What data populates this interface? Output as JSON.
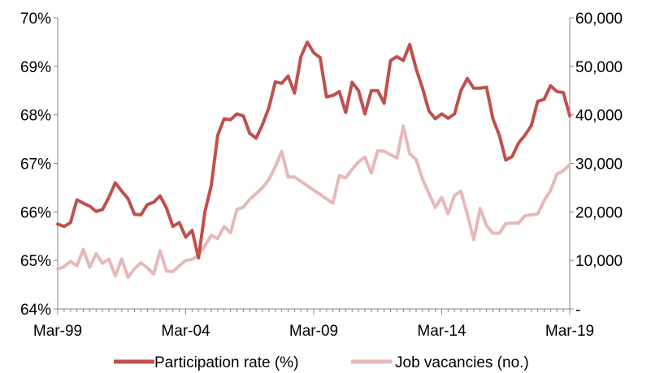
{
  "chart_data": {
    "type": "line",
    "title": "",
    "xlabel": "",
    "ylabel_left": "",
    "ylabel_right": "",
    "x_ticks": [
      "Mar-99",
      "Mar-04",
      "Mar-09",
      "Mar-14",
      "Mar-19"
    ],
    "x_range": [
      "1999-03",
      "2019-03"
    ],
    "y_left": {
      "lim": [
        64,
        70
      ],
      "ticks": [
        "64%",
        "65%",
        "66%",
        "67%",
        "68%",
        "69%",
        "70%"
      ]
    },
    "y_right": {
      "lim": [
        0,
        60000
      ],
      "ticks": [
        "-",
        "10,000",
        "20,000",
        "30,000",
        "40,000",
        "50,000",
        "60,000"
      ]
    },
    "grid": false,
    "legend_position": "bottom",
    "series": [
      {
        "name": "Participation rate (%)",
        "axis": "left",
        "color": "#c0504d",
        "points": [
          [
            "1999-03",
            65.75
          ],
          [
            "1999-06",
            65.7
          ],
          [
            "1999-09",
            65.78
          ],
          [
            "1999-12",
            66.25
          ],
          [
            "2000-03",
            66.18
          ],
          [
            "2000-06",
            66.12
          ],
          [
            "2000-09",
            66.01
          ],
          [
            "2000-12",
            66.05
          ],
          [
            "2001-03",
            66.3
          ],
          [
            "2001-06",
            66.6
          ],
          [
            "2001-09",
            66.43
          ],
          [
            "2001-12",
            66.27
          ],
          [
            "2002-03",
            65.95
          ],
          [
            "2002-06",
            65.94
          ],
          [
            "2002-09",
            66.15
          ],
          [
            "2002-12",
            66.2
          ],
          [
            "2003-03",
            66.33
          ],
          [
            "2003-06",
            66.08
          ],
          [
            "2003-09",
            65.7
          ],
          [
            "2003-12",
            65.78
          ],
          [
            "2004-03",
            65.48
          ],
          [
            "2004-06",
            65.62
          ],
          [
            "2004-09",
            65.05
          ],
          [
            "2004-12",
            66.0
          ],
          [
            "2005-03",
            66.55
          ],
          [
            "2005-06",
            67.58
          ],
          [
            "2005-09",
            67.92
          ],
          [
            "2005-12",
            67.9
          ],
          [
            "2006-03",
            68.02
          ],
          [
            "2006-06",
            67.98
          ],
          [
            "2006-09",
            67.62
          ],
          [
            "2006-12",
            67.52
          ],
          [
            "2007-03",
            67.8
          ],
          [
            "2007-06",
            68.15
          ],
          [
            "2007-09",
            68.68
          ],
          [
            "2007-12",
            68.65
          ],
          [
            "2008-03",
            68.8
          ],
          [
            "2008-06",
            68.45
          ],
          [
            "2008-09",
            69.2
          ],
          [
            "2008-12",
            69.5
          ],
          [
            "2009-03",
            69.28
          ],
          [
            "2009-06",
            69.18
          ],
          [
            "2009-09",
            68.37
          ],
          [
            "2009-12",
            68.4
          ],
          [
            "2010-03",
            68.48
          ],
          [
            "2010-06",
            68.05
          ],
          [
            "2010-09",
            68.67
          ],
          [
            "2010-12",
            68.5
          ],
          [
            "2011-03",
            68.02
          ],
          [
            "2011-06",
            68.5
          ],
          [
            "2011-09",
            68.5
          ],
          [
            "2011-12",
            68.24
          ],
          [
            "2012-03",
            69.12
          ],
          [
            "2012-06",
            69.2
          ],
          [
            "2012-09",
            69.12
          ],
          [
            "2012-12",
            69.45
          ],
          [
            "2013-03",
            68.95
          ],
          [
            "2013-06",
            68.55
          ],
          [
            "2013-09",
            68.08
          ],
          [
            "2013-12",
            67.92
          ],
          [
            "2014-03",
            68.02
          ],
          [
            "2014-06",
            67.93
          ],
          [
            "2014-09",
            68.02
          ],
          [
            "2014-12",
            68.5
          ],
          [
            "2015-03",
            68.75
          ],
          [
            "2015-06",
            68.55
          ],
          [
            "2015-09",
            68.55
          ],
          [
            "2015-12",
            68.57
          ],
          [
            "2016-03",
            67.92
          ],
          [
            "2016-06",
            67.58
          ],
          [
            "2016-09",
            67.07
          ],
          [
            "2016-12",
            67.14
          ],
          [
            "2017-03",
            67.42
          ],
          [
            "2017-06",
            67.58
          ],
          [
            "2017-09",
            67.78
          ],
          [
            "2017-12",
            68.28
          ],
          [
            "2018-03",
            68.32
          ],
          [
            "2018-06",
            68.6
          ],
          [
            "2018-09",
            68.48
          ],
          [
            "2018-12",
            68.46
          ],
          [
            "2019-03",
            67.98
          ]
        ]
      },
      {
        "name": "Job vacancies (no.)",
        "axis": "right",
        "color": "#e6b9b8",
        "points": [
          [
            "1999-03",
            8200
          ],
          [
            "1999-06",
            8700
          ],
          [
            "1999-09",
            9800
          ],
          [
            "1999-12",
            8900
          ],
          [
            "2000-03",
            12300
          ],
          [
            "2000-06",
            8600
          ],
          [
            "2000-09",
            11400
          ],
          [
            "2000-12",
            9400
          ],
          [
            "2001-03",
            10300
          ],
          [
            "2001-06",
            6800
          ],
          [
            "2001-09",
            10300
          ],
          [
            "2001-12",
            6500
          ],
          [
            "2002-03",
            8300
          ],
          [
            "2002-06",
            9500
          ],
          [
            "2002-09",
            8500
          ],
          [
            "2002-12",
            7200
          ],
          [
            "2003-03",
            12000
          ],
          [
            "2003-06",
            7800
          ],
          [
            "2003-09",
            7700
          ],
          [
            "2003-12",
            8900
          ],
          [
            "2004-03",
            10000
          ],
          [
            "2004-06",
            10200
          ],
          [
            "2004-09",
            11100
          ],
          [
            "2004-12",
            13000
          ],
          [
            "2005-03",
            15200
          ],
          [
            "2005-06",
            14500
          ],
          [
            "2005-09",
            17000
          ],
          [
            "2005-12",
            15700
          ],
          [
            "2006-03",
            20500
          ],
          [
            "2006-06",
            21000
          ],
          [
            "2006-09",
            22600
          ],
          [
            "2006-12",
            23800
          ],
          [
            "2007-03",
            25000
          ],
          [
            "2007-06",
            26700
          ],
          [
            "2007-09",
            29300
          ],
          [
            "2007-12",
            32500
          ],
          [
            "2008-03",
            27200
          ],
          [
            "2008-06",
            27200
          ],
          [
            "2008-09",
            26300
          ],
          [
            "2008-12",
            25400
          ],
          [
            "2009-03",
            24500
          ],
          [
            "2009-06",
            23600
          ],
          [
            "2009-09",
            22700
          ],
          [
            "2009-12",
            21800
          ],
          [
            "2010-03",
            27500
          ],
          [
            "2010-06",
            27000
          ],
          [
            "2010-09",
            28800
          ],
          [
            "2010-12",
            30300
          ],
          [
            "2011-03",
            31300
          ],
          [
            "2011-06",
            28000
          ],
          [
            "2011-09",
            32600
          ],
          [
            "2011-12",
            32500
          ],
          [
            "2012-03",
            31800
          ],
          [
            "2012-06",
            31100
          ],
          [
            "2012-09",
            37700
          ],
          [
            "2012-12",
            32000
          ],
          [
            "2013-03",
            30800
          ],
          [
            "2013-06",
            26800
          ],
          [
            "2013-09",
            23800
          ],
          [
            "2013-12",
            20900
          ],
          [
            "2014-03",
            23000
          ],
          [
            "2014-06",
            19600
          ],
          [
            "2014-09",
            23400
          ],
          [
            "2014-12",
            24300
          ],
          [
            "2015-03",
            19500
          ],
          [
            "2015-06",
            14300
          ],
          [
            "2015-09",
            20700
          ],
          [
            "2015-12",
            17200
          ],
          [
            "2016-03",
            15600
          ],
          [
            "2016-06",
            15600
          ],
          [
            "2016-09",
            17600
          ],
          [
            "2016-12",
            17700
          ],
          [
            "2017-03",
            17700
          ],
          [
            "2017-06",
            19200
          ],
          [
            "2017-09",
            19400
          ],
          [
            "2017-12",
            19600
          ],
          [
            "2018-03",
            22300
          ],
          [
            "2018-06",
            24400
          ],
          [
            "2018-09",
            27800
          ],
          [
            "2018-12",
            28500
          ],
          [
            "2019-03",
            29800
          ]
        ]
      }
    ]
  }
}
